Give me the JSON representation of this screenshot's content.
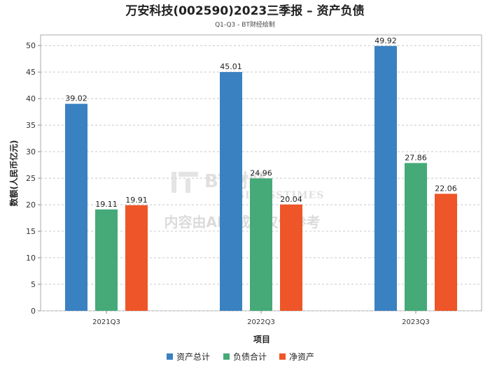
{
  "chart_data": {
    "type": "bar",
    "title": "万安科技(002590)2023三季报 – 资产负债",
    "subtitle": "Q1-Q3 - BT财经绘制",
    "xlabel": "项目",
    "ylabel": "数额(人民币亿元)",
    "ylim": [
      0,
      52
    ],
    "yticks": [
      0,
      5,
      10,
      15,
      20,
      25,
      30,
      35,
      40,
      45,
      50
    ],
    "grid": true,
    "legend_position": "bottom",
    "categories": [
      "2021Q3",
      "2022Q3",
      "2023Q3"
    ],
    "series": [
      {
        "name": "资产总计",
        "color": "#3a81c1",
        "values": [
          39.02,
          45.01,
          49.92
        ]
      },
      {
        "name": "负债合计",
        "color": "#45aa78",
        "values": [
          19.11,
          24.96,
          27.86
        ]
      },
      {
        "name": "净资产",
        "color": "#ee5528",
        "values": [
          19.91,
          20.04,
          22.06
        ]
      }
    ]
  },
  "watermark": {
    "brand": "BT财经",
    "brand_en": "BUSINESSTIMES",
    "notice": "内容由AI生成，仅供参考"
  }
}
